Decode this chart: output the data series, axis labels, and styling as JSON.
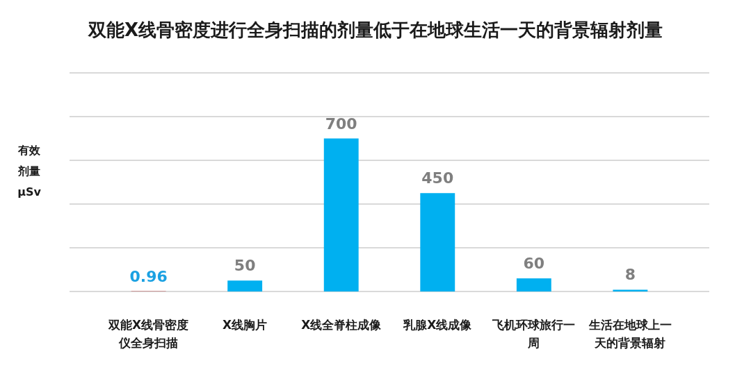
{
  "chart_data": {
    "type": "bar",
    "title": "双能X线骨密度进行全身扫描的剂量低于在地球生活一天的背景辐射剂量",
    "ylabel": "有效剂量μSv",
    "categories": [
      "双能X线骨密度仪全身扫描",
      "X线胸片",
      "X线全脊柱成像",
      "乳腺X线成像",
      "飞机环球旅行一周",
      "生活在地球上一天的背景辐射"
    ],
    "values": [
      0.96,
      50,
      700,
      450,
      60,
      8
    ],
    "colors": [
      "#c00000",
      "#00b0f0",
      "#00b0f0",
      "#00b0f0",
      "#00b0f0",
      "#00b0f0"
    ],
    "ylim": [
      0,
      1000
    ],
    "yticks": [
      {
        "value": 0,
        "label": null
      },
      {
        "value": 200,
        "label": null
      },
      {
        "value": 400,
        "label": null
      },
      {
        "value": 600,
        "label": null
      },
      {
        "value": 800,
        "label": null
      },
      {
        "value": 1000,
        "label": null
      }
    ],
    "grid": "y",
    "data_labels": true
  }
}
